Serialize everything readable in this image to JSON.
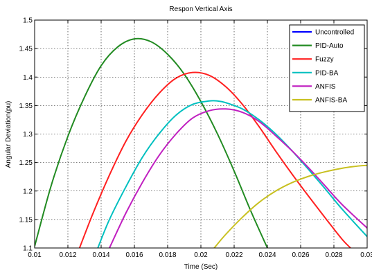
{
  "chart_data": {
    "type": "line",
    "title": "Respon Vertical Axis",
    "xlabel": "Time (Sec)",
    "ylabel": "Angular Deviation(pu)",
    "xlim": [
      0.01,
      0.03
    ],
    "ylim": [
      1.1,
      1.5
    ],
    "xticks": [
      0.01,
      0.012,
      0.014,
      0.016,
      0.018,
      0.02,
      0.022,
      0.024,
      0.026,
      0.028,
      0.03
    ],
    "yticks": [
      1.1,
      1.15,
      1.2,
      1.25,
      1.3,
      1.35,
      1.4,
      1.45,
      1.5
    ],
    "xtick_labels": [
      "0.01",
      "0.012",
      "0.014",
      "0.016",
      "0.018",
      "0.02",
      "0.022",
      "0.024",
      "0.026",
      "0.028",
      "0.03"
    ],
    "ytick_labels": [
      "1.1",
      "1.15",
      "1.2",
      "1.25",
      "1.3",
      "1.35",
      "1.4",
      "1.45",
      "1.5"
    ],
    "grid": true,
    "legend_position": "top-right",
    "series": [
      {
        "name": "Uncontrolled",
        "color": "#0000ff",
        "x": [],
        "y": []
      },
      {
        "name": "PID-Auto",
        "color": "#228b22",
        "x": [
          0.01,
          0.011,
          0.012,
          0.013,
          0.014,
          0.015,
          0.016,
          0.017,
          0.018,
          0.019,
          0.02,
          0.021,
          0.022,
          0.023,
          0.024
        ],
        "y": [
          1.103,
          1.21,
          1.296,
          1.365,
          1.42,
          1.453,
          1.467,
          1.462,
          1.44,
          1.405,
          1.357,
          1.3,
          1.235,
          1.165,
          1.1
        ]
      },
      {
        "name": "Fuzzy",
        "color": "#ff2020",
        "x": [
          0.0127,
          0.0135,
          0.0145,
          0.0155,
          0.0165,
          0.0175,
          0.0185,
          0.0195,
          0.0205,
          0.0215,
          0.0225,
          0.0235,
          0.0245,
          0.0255,
          0.0265,
          0.0275,
          0.0285,
          0.029
        ],
        "y": [
          1.1,
          1.16,
          1.228,
          1.288,
          1.335,
          1.372,
          1.398,
          1.408,
          1.403,
          1.383,
          1.352,
          1.313,
          1.27,
          1.229,
          1.19,
          1.152,
          1.115,
          1.1
        ]
      },
      {
        "name": "PID-BA",
        "color": "#00c0c0",
        "x": [
          0.0138,
          0.0145,
          0.0155,
          0.0165,
          0.0175,
          0.0185,
          0.0195,
          0.0205,
          0.021,
          0.0215,
          0.0225,
          0.0235,
          0.0245,
          0.0255,
          0.0265,
          0.0275,
          0.0285,
          0.03
        ],
        "y": [
          1.1,
          1.15,
          1.208,
          1.26,
          1.301,
          1.333,
          1.352,
          1.358,
          1.358,
          1.355,
          1.344,
          1.325,
          1.3,
          1.27,
          1.237,
          1.203,
          1.168,
          1.12
        ]
      },
      {
        "name": "ANFIS",
        "color": "#c020c0",
        "x": [
          0.0145,
          0.0155,
          0.0165,
          0.0175,
          0.0185,
          0.0195,
          0.0205,
          0.0215,
          0.0225,
          0.0235,
          0.0245,
          0.0255,
          0.0265,
          0.0275,
          0.0285,
          0.03
        ],
        "y": [
          1.1,
          1.162,
          1.216,
          1.263,
          1.3,
          1.328,
          1.341,
          1.344,
          1.338,
          1.322,
          1.297,
          1.27,
          1.24,
          1.208,
          1.176,
          1.135
        ]
      },
      {
        "name": "ANFIS-BA",
        "color": "#c8c020",
        "x": [
          0.0208,
          0.0215,
          0.0225,
          0.0235,
          0.0245,
          0.0255,
          0.0265,
          0.0275,
          0.0285,
          0.0295,
          0.03
        ],
        "y": [
          1.1,
          1.124,
          1.154,
          1.18,
          1.2,
          1.215,
          1.226,
          1.234,
          1.24,
          1.244,
          1.245
        ]
      }
    ]
  }
}
